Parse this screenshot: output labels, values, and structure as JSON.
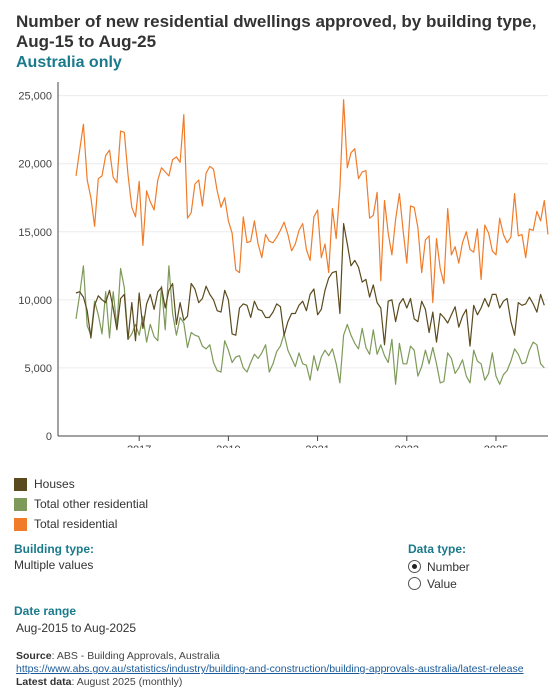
{
  "title": "Number of new residential dwellings approved, by building type, Aug-15 to Aug-25",
  "subtitle": "Australia only",
  "chart_data": {
    "type": "line",
    "x_start": "2015-08",
    "x_end": "2025-08",
    "x_frequency": "monthly",
    "ylim": [
      0,
      26000
    ],
    "y_ticks": [
      0,
      5000,
      10000,
      15000,
      20000,
      25000
    ],
    "y_tick_labels": [
      "0",
      "5,000",
      "10,000",
      "15,000",
      "20,000",
      "25,000"
    ],
    "x_ticks": [
      2017,
      2019,
      2021,
      2023,
      2025
    ],
    "x_tick_labels": [
      "2017",
      "2019",
      "2021",
      "2023",
      "2025"
    ],
    "series": [
      {
        "name": "Houses",
        "color": "#5a4a1e",
        "values": [
          10500,
          10600,
          10200,
          9200,
          7200,
          9600,
          10300,
          10000,
          9800,
          10700,
          9400,
          7800,
          10100,
          10400,
          7100,
          9800,
          7000,
          10500,
          7900,
          9700,
          10400,
          9300,
          10600,
          10900,
          9400,
          10700,
          11200,
          8200,
          9800,
          8500,
          8800,
          11200,
          10800,
          9800,
          10100,
          11000,
          10400,
          10000,
          9200,
          9100,
          10700,
          10000,
          7500,
          7400,
          9400,
          9700,
          9600,
          8700,
          9900,
          9300,
          9200,
          8700,
          8700,
          9100,
          9700,
          9500,
          7400,
          8400,
          9000,
          9000,
          9600,
          9900,
          9200,
          10400,
          10800,
          8900,
          9300,
          10700,
          11600,
          12000,
          12100,
          9000,
          15600,
          14100,
          12500,
          12900,
          12400,
          11300,
          11500,
          10200,
          11100,
          9800,
          9400,
          6700,
          9900,
          10000,
          8400,
          9700,
          10100,
          9400,
          10100,
          8600,
          8400,
          9900,
          9300,
          7600,
          9100,
          6900,
          9000,
          8700,
          8300,
          8900,
          9500,
          8000,
          8800,
          9300,
          6600,
          9600,
          8900,
          9400,
          10100,
          9500,
          10400,
          10400,
          9400,
          9900,
          10100,
          8400,
          7400,
          9800,
          9600,
          9700,
          10200,
          9700,
          9100,
          10400,
          9600
        ]
      },
      {
        "name": "Total other residential",
        "color": "#7e9a5a",
        "values": [
          8600,
          10400,
          12500,
          8100,
          7400,
          9900,
          8900,
          7500,
          10600,
          7200,
          10600,
          8000,
          12300,
          10900,
          7100,
          7500,
          8200,
          7400,
          8800,
          6900,
          8200,
          7300,
          7000,
          11000,
          7800,
          12500,
          9000,
          7400,
          8700,
          8300,
          6500,
          7600,
          7400,
          7300,
          6600,
          6400,
          6700,
          5400,
          4800,
          4700,
          7000,
          6300,
          5400,
          5800,
          5900,
          5000,
          4700,
          5400,
          6000,
          5700,
          6100,
          6700,
          4700,
          5300,
          6200,
          6600,
          7500,
          6300,
          5700,
          5100,
          6100,
          5300,
          5200,
          4100,
          5900,
          4800,
          5800,
          6300,
          5900,
          6400,
          5300,
          3900,
          7400,
          8200,
          7400,
          6800,
          6400,
          7900,
          6500,
          6000,
          7800,
          6000,
          6700,
          5900,
          5400,
          7100,
          3800,
          6800,
          5300,
          5300,
          6600,
          6300,
          4400,
          5100,
          6300,
          5300,
          6500,
          5300,
          3900,
          4000,
          6100,
          5700,
          4600,
          5000,
          5600,
          4400,
          3900,
          6300,
          5500,
          5300,
          4100,
          4600,
          6100,
          4400,
          3800,
          4500,
          4800,
          5500,
          6400,
          6000,
          5300,
          5400,
          6300,
          6900,
          6700,
          5300,
          5000
        ]
      },
      {
        "name": "Total residential",
        "color": "#f07c2a",
        "values": [
          19100,
          21000,
          22900,
          18800,
          17500,
          15400,
          18900,
          19100,
          20600,
          21000,
          19000,
          18600,
          22400,
          22300,
          19200,
          16800,
          16100,
          18700,
          14000,
          18000,
          17200,
          16600,
          18800,
          19700,
          19400,
          19100,
          20300,
          20500,
          20100,
          23600,
          16000,
          16400,
          18500,
          18800,
          16900,
          19300,
          19800,
          19600,
          18000,
          16800,
          17500,
          15800,
          14900,
          12200,
          12000,
          16100,
          14200,
          14300,
          15800,
          14100,
          13100,
          14800,
          14300,
          14200,
          14600,
          15100,
          15700,
          14800,
          13600,
          14100,
          15100,
          15600,
          13700,
          12900,
          16100,
          16600,
          13100,
          14100,
          12000,
          16700,
          14500,
          18200,
          24700,
          19700,
          20800,
          21100,
          18900,
          19400,
          19500,
          16000,
          16200,
          17900,
          11400,
          17300,
          14900,
          13300,
          15900,
          17800,
          15100,
          12700,
          16900,
          16800,
          15300,
          12000,
          14400,
          14700,
          9800,
          14500,
          12300,
          11200,
          16700,
          13300,
          13900,
          12700,
          14200,
          15000,
          13700,
          13500,
          15200,
          11500,
          15500,
          14900,
          13600,
          13300,
          16000,
          14800,
          14200,
          14600,
          17800,
          14700,
          14800,
          13100,
          15200,
          15100,
          16500,
          15800,
          17300,
          14800
        ]
      }
    ]
  },
  "legend": {
    "items": [
      {
        "label": "Houses",
        "color": "#5a4a1e"
      },
      {
        "label": "Total other residential",
        "color": "#7e9a5a"
      },
      {
        "label": "Total residential",
        "color": "#f07c2a"
      }
    ]
  },
  "filters": {
    "building_type": {
      "title": "Building type:",
      "value": "Multiple values"
    },
    "data_type": {
      "title": "Data type:",
      "options": [
        "Number",
        "Value"
      ],
      "selected": "Number"
    },
    "date_range": {
      "title": "Date range",
      "value": "Aug-2015 to Aug-2025"
    }
  },
  "footer": {
    "source_label": "Source",
    "source_text": ": ABS - Building Approvals, Australia",
    "url": "https://www.abs.gov.au/statistics/industry/building-and-construction/building-approvals-australia/latest-release",
    "latest_label": "Latest data",
    "latest_text": ": August 2025 (monthly)"
  }
}
